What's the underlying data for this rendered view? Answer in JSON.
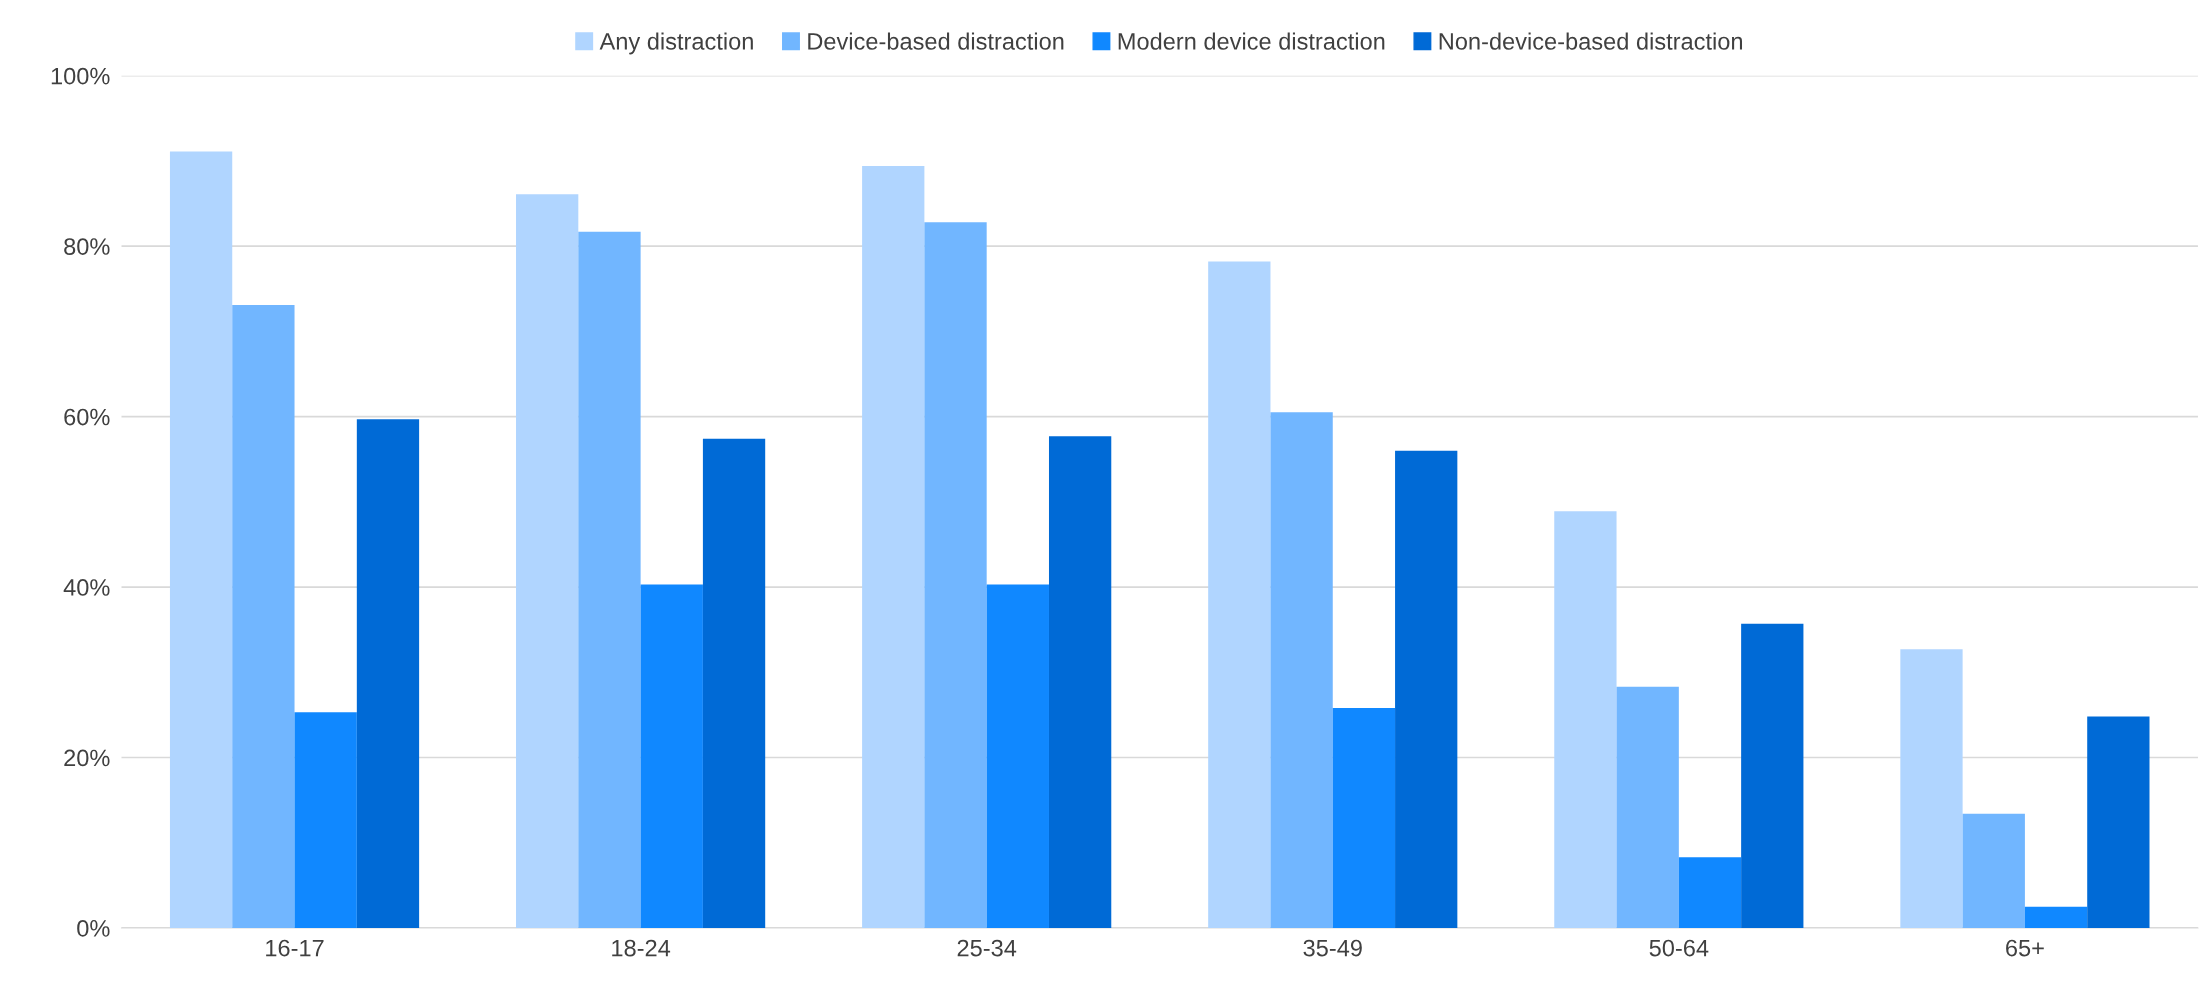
{
  "chart_data": {
    "type": "bar",
    "categories": [
      "16-17",
      "18-24",
      "25-34",
      "35-49",
      "50-64",
      "65+"
    ],
    "series": [
      {
        "name": "Any distraction",
        "color": "#b0d5ff",
        "values": [
          91.1,
          86.1,
          89.4,
          78.2,
          48.9,
          32.7
        ]
      },
      {
        "name": "Device-based distraction",
        "color": "#71b6ff",
        "values": [
          73.1,
          81.7,
          82.8,
          60.5,
          28.3,
          13.4
        ]
      },
      {
        "name": "Modern device distraction",
        "color": "#1088ff",
        "values": [
          25.3,
          40.3,
          40.3,
          25.8,
          8.3,
          2.5
        ]
      },
      {
        "name": "Non-device-based distraction",
        "color": "#006ad6",
        "values": [
          59.7,
          57.4,
          57.7,
          56.0,
          35.7,
          24.8
        ]
      }
    ],
    "ylim": [
      0,
      100
    ],
    "yticks": [
      {
        "value": 0,
        "label": "0%"
      },
      {
        "value": 20,
        "label": "20%"
      },
      {
        "value": 40,
        "label": "40%"
      },
      {
        "value": 60,
        "label": "60%"
      },
      {
        "value": 80,
        "label": "80%"
      },
      {
        "value": 100,
        "label": "100%"
      }
    ],
    "grid": "y",
    "legend": "top"
  }
}
